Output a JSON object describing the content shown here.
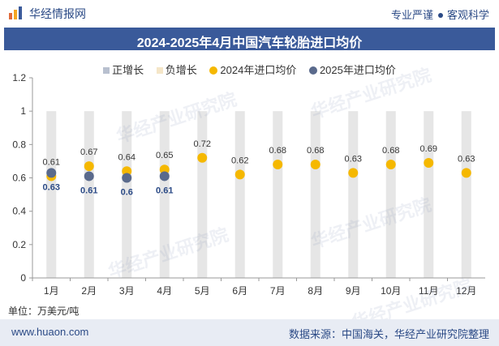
{
  "header": {
    "brand": "华经情报网",
    "slogan_left": "专业严谨",
    "slogan_right": "客观科学",
    "title": "2024-2025年4月中国汽车轮胎进口均价"
  },
  "legend": {
    "items": [
      {
        "label": "正增长",
        "color": "#b8c0cf",
        "shape": "square"
      },
      {
        "label": "负增长",
        "color": "#f5e6c8",
        "shape": "square"
      },
      {
        "label": "2024年进口均价",
        "color": "#f5b800",
        "shape": "circle"
      },
      {
        "label": "2025年进口均价",
        "color": "#5a6a8c",
        "shape": "circle"
      }
    ]
  },
  "chart_data": {
    "type": "scatter",
    "title": "2024-2025年4月中国汽车轮胎进口均价",
    "categories": [
      "1月",
      "2月",
      "3月",
      "4月",
      "5月",
      "6月",
      "7月",
      "8月",
      "9月",
      "10月",
      "11月",
      "12月"
    ],
    "series": [
      {
        "name": "2024年进口均价",
        "values": [
          0.61,
          0.67,
          0.64,
          0.65,
          0.72,
          0.62,
          0.68,
          0.68,
          0.63,
          0.68,
          0.69,
          0.63
        ],
        "color": "#f5b800"
      },
      {
        "name": "2025年进口均价",
        "values": [
          0.63,
          0.61,
          0.6,
          0.61,
          null,
          null,
          null,
          null,
          null,
          null,
          null,
          null
        ],
        "color": "#5a6a8c"
      }
    ],
    "background_bar_value": 1.0,
    "ylim": [
      0,
      1.2
    ],
    "yticks": [
      "0",
      "0.2",
      "0.4",
      "0.6",
      "0.8",
      "1",
      "1.2"
    ],
    "ytick_values": [
      0,
      0.2,
      0.4,
      0.6,
      0.8,
      1.0,
      1.2
    ],
    "xlabel": "",
    "ylabel": "单位：万美元/吨"
  },
  "footer": {
    "unit": "单位：万美元/吨",
    "site": "www.huaon.com",
    "source": "数据来源：中国海关，华经产业研究院整理"
  },
  "watermark": "华经产业研究院"
}
